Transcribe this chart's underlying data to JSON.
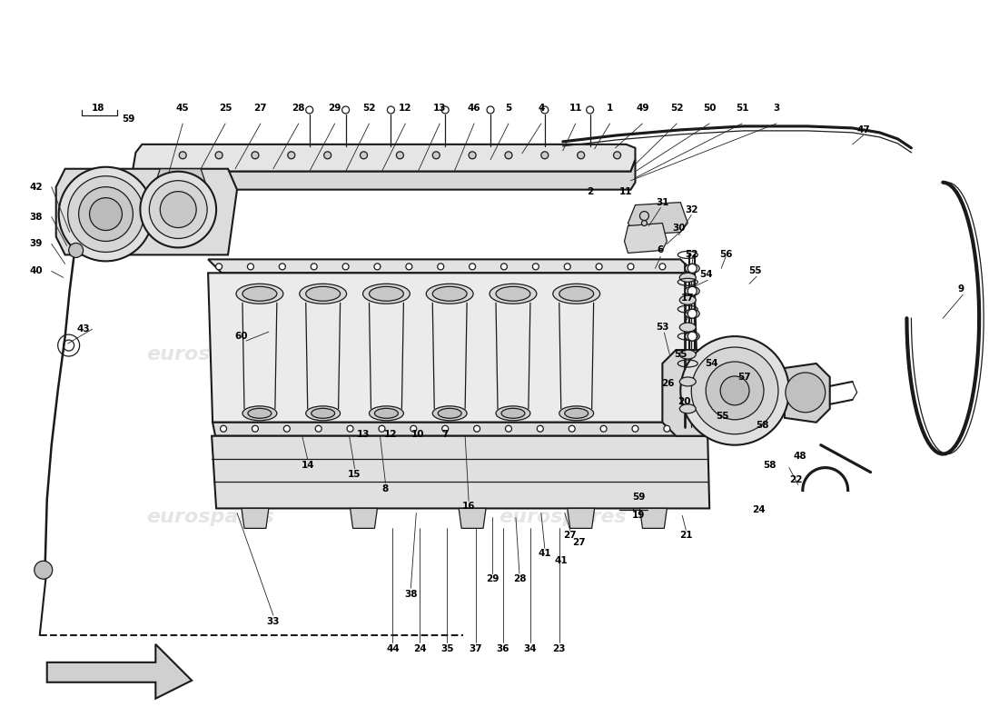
{
  "background_color": "#ffffff",
  "line_color": "#1a1a1a",
  "watermark_color": "#cccccc",
  "fig_width": 11.0,
  "fig_height": 8.0,
  "dpi": 100,
  "labels_top": [
    [
      107,
      731,
      "18"
    ],
    [
      135,
      731,
      "59"
    ],
    [
      200,
      125,
      "45"
    ],
    [
      247,
      125,
      "25"
    ],
    [
      286,
      125,
      "27"
    ],
    [
      328,
      125,
      "28"
    ],
    [
      368,
      125,
      "29"
    ],
    [
      406,
      125,
      "52"
    ],
    [
      446,
      125,
      "12"
    ],
    [
      484,
      125,
      "13"
    ],
    [
      522,
      125,
      "46"
    ],
    [
      560,
      125,
      "5"
    ],
    [
      596,
      125,
      "4"
    ],
    [
      634,
      125,
      "11"
    ],
    [
      672,
      125,
      "1"
    ],
    [
      708,
      125,
      "49"
    ],
    [
      746,
      125,
      "52"
    ],
    [
      782,
      125,
      "50"
    ],
    [
      818,
      125,
      "51"
    ],
    [
      856,
      125,
      "3"
    ]
  ],
  "labels_right": [
    [
      900,
      148,
      "47"
    ],
    [
      660,
      225,
      "2"
    ],
    [
      700,
      220,
      "11"
    ],
    [
      720,
      248,
      "31"
    ],
    [
      756,
      255,
      "32"
    ],
    [
      740,
      272,
      "30"
    ],
    [
      718,
      295,
      "6"
    ],
    [
      758,
      295,
      "52"
    ],
    [
      790,
      295,
      "56"
    ],
    [
      770,
      318,
      "54"
    ],
    [
      820,
      310,
      "55"
    ],
    [
      754,
      345,
      "17"
    ],
    [
      726,
      375,
      "53"
    ],
    [
      748,
      398,
      "55"
    ],
    [
      776,
      405,
      "54"
    ],
    [
      730,
      428,
      "26"
    ],
    [
      748,
      445,
      "20"
    ],
    [
      802,
      420,
      "57"
    ],
    [
      780,
      460,
      "55"
    ],
    [
      818,
      472,
      "58"
    ],
    [
      864,
      502,
      "48"
    ],
    [
      1010,
      310,
      "9"
    ],
    [
      862,
      530,
      "22"
    ],
    [
      820,
      560,
      "24"
    ]
  ],
  "labels_left": [
    [
      38,
      205,
      "42"
    ],
    [
      38,
      240,
      "38"
    ],
    [
      38,
      268,
      "39"
    ],
    [
      38,
      296,
      "40"
    ],
    [
      100,
      345,
      "43"
    ]
  ],
  "labels_bottom": [
    [
      304,
      680,
      "33"
    ],
    [
      434,
      710,
      "44"
    ],
    [
      464,
      710,
      "24"
    ],
    [
      494,
      710,
      "35"
    ],
    [
      524,
      710,
      "37"
    ],
    [
      554,
      710,
      "36"
    ],
    [
      582,
      710,
      "34"
    ],
    [
      614,
      710,
      "23"
    ],
    [
      450,
      655,
      "38"
    ],
    [
      540,
      640,
      "29"
    ],
    [
      570,
      640,
      "28"
    ],
    [
      596,
      610,
      "41"
    ],
    [
      622,
      590,
      "27"
    ],
    [
      514,
      555,
      "16"
    ],
    [
      422,
      535,
      "8"
    ],
    [
      388,
      520,
      "15"
    ],
    [
      334,
      510,
      "14"
    ],
    [
      396,
      476,
      "13"
    ],
    [
      426,
      476,
      "12"
    ],
    [
      458,
      476,
      "10"
    ],
    [
      488,
      476,
      "7"
    ]
  ]
}
